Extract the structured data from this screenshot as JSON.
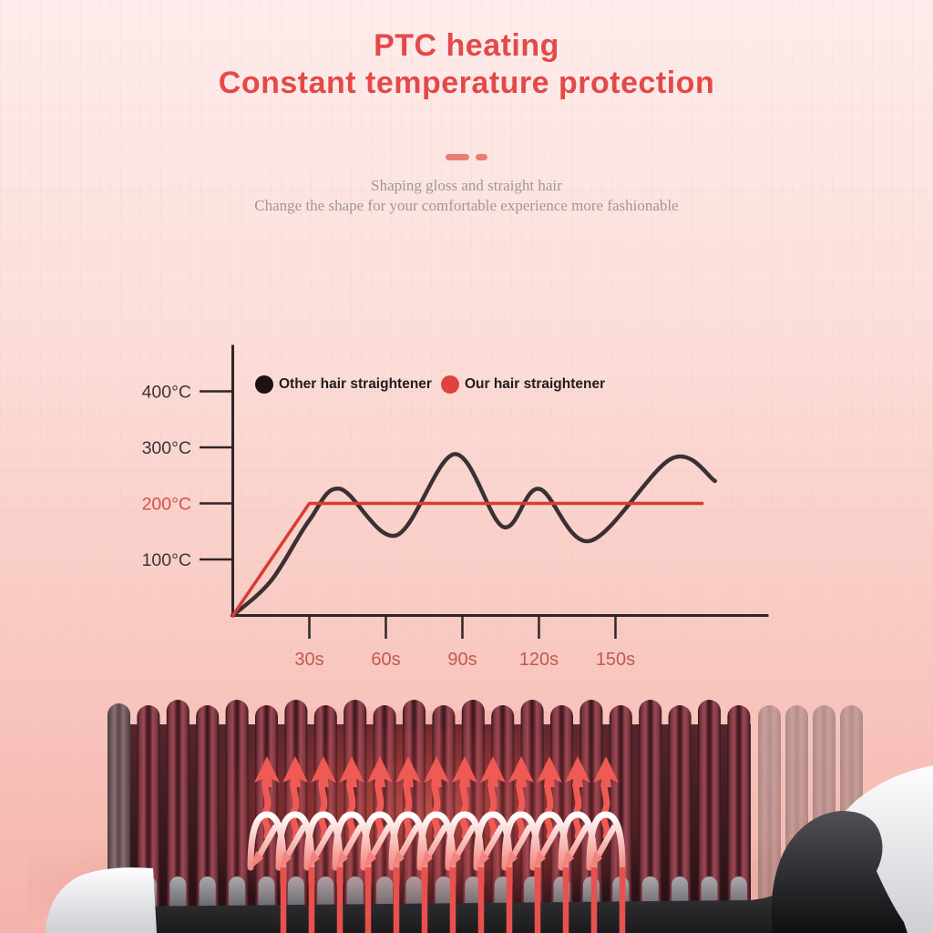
{
  "header": {
    "title_line1": "PTC heating",
    "title_line2": "Constant temperature protection",
    "subtitle_line1": "Shaping gloss and straight hair",
    "subtitle_line2": "Change the shape for your comfortable experience more fashionable"
  },
  "colors": {
    "title": "#e24a49",
    "divider": "#e87f70",
    "subtitle": "#9e9894",
    "axis": "#2e2627",
    "y_label": "#3e3536",
    "y_label_highlight": "#d2504a",
    "x_label": "#bf5a50",
    "background_top": "#fdedec",
    "background_bottom": "#f5b4ab"
  },
  "chart_data": {
    "type": "line",
    "x_unit": "s",
    "y_unit": "°C",
    "xlim": [
      0,
      210
    ],
    "ylim": [
      0,
      483
    ],
    "grid": false,
    "legend_position": "top-inside",
    "x_ticks": [
      {
        "label": "30s",
        "value": 30
      },
      {
        "label": "60s",
        "value": 60
      },
      {
        "label": "90s",
        "value": 90
      },
      {
        "label": "120s",
        "value": 120
      },
      {
        "label": "150s",
        "value": 150
      }
    ],
    "y_ticks": [
      {
        "label": "400°C",
        "value": 400,
        "highlight": false
      },
      {
        "label": "300°C",
        "value": 300,
        "highlight": false
      },
      {
        "label": "200°C",
        "value": 200,
        "highlight": true
      },
      {
        "label": "100°C",
        "value": 100,
        "highlight": false
      }
    ],
    "legend": [
      {
        "label": "Other hair straightener",
        "color": "#1d1112"
      },
      {
        "label": "Our hair straightener",
        "color": "#e2423c"
      }
    ],
    "series": [
      {
        "name": "Other hair straightener",
        "color": "#3b3033",
        "stroke_width": 4.5,
        "smooth": true,
        "x": [
          0,
          15,
          30,
          42,
          64,
          87,
          106,
          120,
          140,
          172,
          189
        ],
        "y": [
          0,
          62,
          170,
          226,
          143,
          288,
          158,
          226,
          133,
          280,
          240
        ]
      },
      {
        "name": "Our hair straightener",
        "color": "#d83c33",
        "stroke_width": 3.5,
        "smooth": false,
        "x": [
          0,
          30,
          184
        ],
        "y": [
          0,
          200,
          200
        ]
      }
    ]
  },
  "product": {
    "depicts": "hair straightener heated brush close-up with glowing bristles and rising heat arrows"
  }
}
